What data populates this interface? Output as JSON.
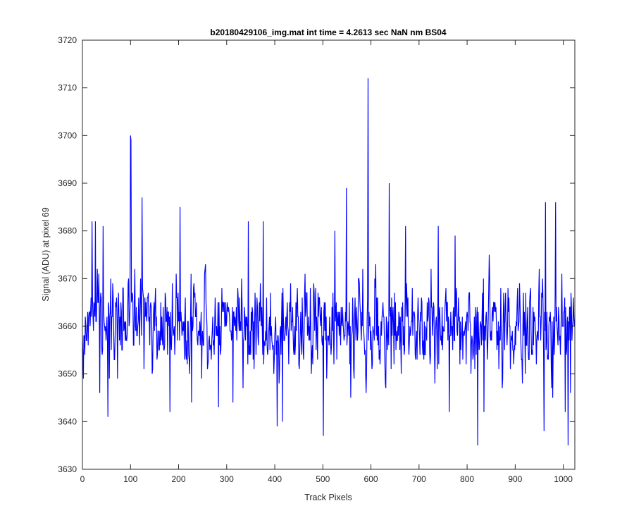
{
  "chart_data": {
    "type": "line",
    "title": "b20180429106_img.mat int time = 4.2613 sec  NaN nm BS04",
    "xlabel": "Track Pixels",
    "ylabel": "Signal (ADU) at pixel 69",
    "xlim": [
      0,
      1024
    ],
    "ylim": [
      3630,
      3720
    ],
    "xticks": [
      0,
      100,
      200,
      300,
      400,
      500,
      600,
      700,
      800,
      900,
      1000
    ],
    "yticks": [
      3630,
      3640,
      3650,
      3660,
      3670,
      3680,
      3690,
      3700,
      3710,
      3720
    ],
    "xtick_labels": [
      "0",
      "100",
      "200",
      "300",
      "400",
      "500",
      "600",
      "700",
      "800",
      "900",
      "1000"
    ],
    "ytick_labels": [
      "3630",
      "3640",
      "3650",
      "3660",
      "3670",
      "3680",
      "3690",
      "3700",
      "3710",
      "3720"
    ],
    "grid": false,
    "box": true,
    "series": [
      {
        "color": "#0000ff",
        "n_points": 1024,
        "baseline": 3660,
        "typical_range": [
          3645,
          3675
        ],
        "notable_points": [
          {
            "x": 2,
            "y": 3649
          },
          {
            "x": 20,
            "y": 3682
          },
          {
            "x": 27,
            "y": 3682
          },
          {
            "x": 36,
            "y": 3646
          },
          {
            "x": 43,
            "y": 3681
          },
          {
            "x": 53,
            "y": 3641
          },
          {
            "x": 100,
            "y": 3700
          },
          {
            "x": 101,
            "y": 3699
          },
          {
            "x": 124,
            "y": 3687
          },
          {
            "x": 182,
            "y": 3642
          },
          {
            "x": 203,
            "y": 3685
          },
          {
            "x": 227,
            "y": 3644
          },
          {
            "x": 283,
            "y": 3643
          },
          {
            "x": 345,
            "y": 3682
          },
          {
            "x": 376,
            "y": 3682
          },
          {
            "x": 405,
            "y": 3639
          },
          {
            "x": 416,
            "y": 3640
          },
          {
            "x": 501,
            "y": 3637
          },
          {
            "x": 525,
            "y": 3680
          },
          {
            "x": 549,
            "y": 3689
          },
          {
            "x": 594,
            "y": 3712
          },
          {
            "x": 638,
            "y": 3690
          },
          {
            "x": 672,
            "y": 3681
          },
          {
            "x": 740,
            "y": 3681
          },
          {
            "x": 763,
            "y": 3642
          },
          {
            "x": 775,
            "y": 3679
          },
          {
            "x": 822,
            "y": 3635
          },
          {
            "x": 835,
            "y": 3642
          },
          {
            "x": 960,
            "y": 3638
          },
          {
            "x": 963,
            "y": 3686
          },
          {
            "x": 984,
            "y": 3686
          },
          {
            "x": 1004,
            "y": 3642
          },
          {
            "x": 1010,
            "y": 3635
          },
          {
            "x": 1015,
            "y": 3646
          }
        ]
      }
    ]
  }
}
